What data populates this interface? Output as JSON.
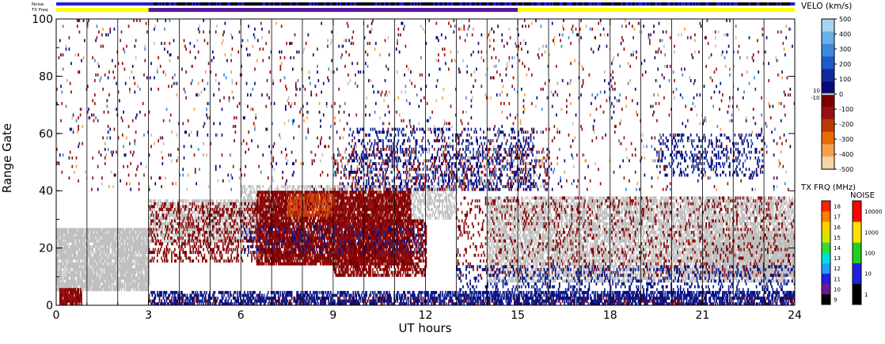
{
  "chart_data": {
    "type": "heatmap",
    "xlabel": "UT hours",
    "ylabel": "Range Gate",
    "xlim": [
      0,
      24
    ],
    "ylim": [
      0,
      100
    ],
    "x_ticks": [
      0,
      3,
      6,
      9,
      12,
      15,
      18,
      21,
      24
    ],
    "y_ticks": [
      0,
      20,
      40,
      60,
      80,
      100
    ],
    "hour_gridlines": [
      1,
      2,
      3,
      4,
      5,
      6,
      7,
      8,
      9,
      10,
      11,
      12,
      13,
      14,
      15,
      16,
      17,
      18,
      19,
      20,
      21,
      22,
      23
    ],
    "top_strips": {
      "noise_label": "Noise",
      "txfreq_label": "TX Freq",
      "txfreq_segments": [
        {
          "start": 0,
          "end": 3,
          "color": "#ffff00"
        },
        {
          "start": 3,
          "end": 15,
          "color": "#5a189a"
        },
        {
          "start": 15,
          "end": 24,
          "color": "#ffff00"
        }
      ]
    },
    "velocity_scale": {
      "title": "VELO (km/s)",
      "colors": [
        "#f5d3a8",
        "#f5a04a",
        "#e86a00",
        "#b83a00",
        "#991010",
        "#7a0000",
        "#0a0a7a",
        "#102a9a",
        "#1e5ac8",
        "#3a8ad8",
        "#6ab0e8",
        "#a6d4f4"
      ],
      "ticks": [
        {
          "label": "500",
          "value": 500
        },
        {
          "label": "400",
          "value": 400
        },
        {
          "label": "300",
          "value": 300
        },
        {
          "label": "200",
          "value": 200
        },
        {
          "label": "100",
          "value": 100
        },
        {
          "label": "0",
          "value": 0
        },
        {
          "label": "-100",
          "value": -100
        },
        {
          "label": "-200",
          "value": -200
        },
        {
          "label": "-300",
          "value": -300
        },
        {
          "label": "-400",
          "value": -400
        },
        {
          "label": "-500",
          "value": -500
        }
      ],
      "ground_scatter_labels": [
        "10",
        "-10"
      ]
    },
    "txfreq_scale": {
      "title": "TX FRQ (MHz)",
      "colors": [
        "#000000",
        "#6a1a9a",
        "#2020e0",
        "#20a0ff",
        "#00e0e0",
        "#30e030",
        "#d0e800",
        "#ffd000",
        "#ff8000",
        "#ff2000"
      ],
      "ticks": [
        "9",
        "10",
        "11",
        "12",
        "13",
        "14",
        "15",
        "16",
        "17",
        "18"
      ]
    },
    "noise_scale": {
      "title": "NOISE",
      "colors": [
        "#000000",
        "#2020e0",
        "#20d020",
        "#ffe000",
        "#ff0000"
      ],
      "ticks": [
        "1",
        "10",
        "100",
        "1000",
        "10000"
      ]
    },
    "regions": [
      {
        "kind": "ground",
        "x0": 0.0,
        "x1": 3.0,
        "y0": 5,
        "y1": 27,
        "density": 0.85
      },
      {
        "kind": "ground",
        "x0": 3.0,
        "x1": 8.0,
        "y0": 22,
        "y1": 37,
        "density": 0.55
      },
      {
        "kind": "ground",
        "x0": 6.0,
        "x1": 13.0,
        "y0": 30,
        "y1": 42,
        "density": 0.45
      },
      {
        "kind": "ground",
        "x0": 14.0,
        "x1": 24.0,
        "y0": 8,
        "y1": 38,
        "density": 0.6
      },
      {
        "kind": "ground",
        "x0": 21.0,
        "x1": 24.0,
        "y0": 10,
        "y1": 25,
        "density": 0.8
      },
      {
        "kind": "neg",
        "x0": 6.5,
        "x1": 11.5,
        "y0": 14,
        "y1": 40,
        "density": 0.85
      },
      {
        "kind": "neg",
        "x0": 3.0,
        "x1": 6.5,
        "y0": 15,
        "y1": 36,
        "density": 0.3
      },
      {
        "kind": "neg",
        "x0": 9.0,
        "x1": 12.0,
        "y0": 10,
        "y1": 30,
        "density": 0.6
      },
      {
        "kind": "neg",
        "x0": 13.0,
        "x1": 24.0,
        "y0": 10,
        "y1": 38,
        "density": 0.12
      },
      {
        "kind": "neg",
        "x0": 3.0,
        "x1": 24.0,
        "y0": 0,
        "y1": 3,
        "density": 0.35
      },
      {
        "kind": "neg",
        "x0": 0.1,
        "x1": 0.8,
        "y0": 0,
        "y1": 6,
        "density": 0.9
      },
      {
        "kind": "negbright",
        "x0": 7.5,
        "x1": 9.0,
        "y0": 31,
        "y1": 39,
        "density": 0.6
      },
      {
        "kind": "pos",
        "x0": 3.0,
        "x1": 24.0,
        "y0": 0,
        "y1": 5,
        "density": 0.55
      },
      {
        "kind": "pos",
        "x0": 13.0,
        "x1": 24.0,
        "y0": 2,
        "y1": 14,
        "density": 0.18
      },
      {
        "kind": "pos",
        "x0": 6.0,
        "x1": 12.0,
        "y0": 18,
        "y1": 28,
        "density": 0.15
      },
      {
        "kind": "pos",
        "x0": 9.5,
        "x1": 15.5,
        "y0": 40,
        "y1": 62,
        "density": 0.22
      },
      {
        "kind": "pos",
        "x0": 19.5,
        "x1": 23.0,
        "y0": 45,
        "y1": 60,
        "density": 0.2
      },
      {
        "kind": "mix",
        "x0": 0.0,
        "x1": 24.0,
        "y0": 40,
        "y1": 100,
        "density": 0.04
      },
      {
        "kind": "mix",
        "x0": 9.0,
        "x1": 16.0,
        "y0": 40,
        "y1": 55,
        "density": 0.2
      }
    ]
  }
}
